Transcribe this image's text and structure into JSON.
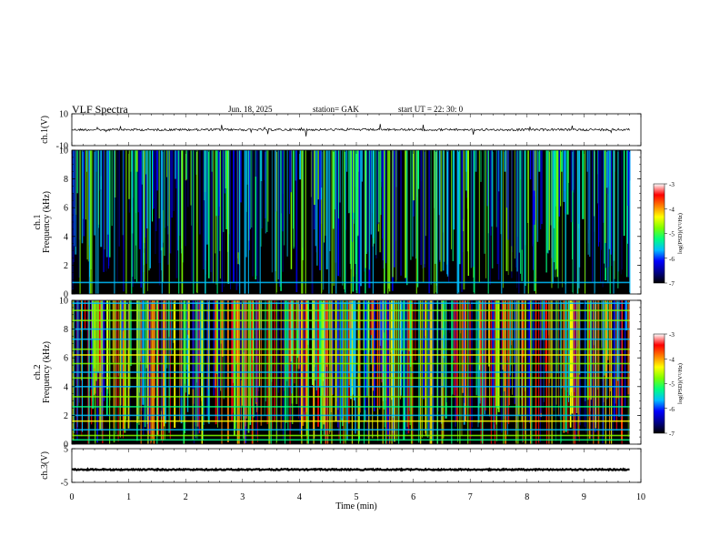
{
  "header": {
    "title": "VLF  Spectra",
    "date": "Jun. 18, 2025",
    "station": "station= GAK",
    "start_ut": "start  UT  =   22: 30: 0"
  },
  "chart_data": [
    {
      "id": "ch1-waveform",
      "type": "line",
      "ylabel": "ch.1(V)",
      "ylim": [
        -10,
        10
      ],
      "yticks": [
        "10",
        "-10"
      ],
      "xlim": [
        0,
        10
      ],
      "baseline": 0,
      "data_end_min": 9.8,
      "color": "#000000"
    },
    {
      "id": "ch1-spectrogram",
      "type": "heatmap",
      "ylabel": "ch.1\nFrequency  (kHz)",
      "ylim": [
        0,
        10
      ],
      "yticks": [
        "0",
        "2",
        "4",
        "6",
        "8",
        "10"
      ],
      "xlim": [
        0,
        10
      ],
      "data_end_min": 9.8,
      "colorbar": {
        "label": "log(PSD)(V²/Hz)",
        "ticks": [
          "-3",
          "-4",
          "-5",
          "-6",
          "-7"
        ],
        "range": [
          -7,
          -3
        ]
      },
      "horizontal_lines_khz": [
        0.8
      ]
    },
    {
      "id": "ch2-spectrogram",
      "type": "heatmap",
      "ylabel": "ch.2\nFrequency  (kHz)",
      "ylim": [
        0,
        10
      ],
      "yticks": [
        "0",
        "2",
        "4",
        "6",
        "8",
        "10"
      ],
      "xlim": [
        0,
        10
      ],
      "data_end_min": 9.8,
      "colorbar": {
        "label": "log(PSD)(V²/Hz)",
        "ticks": [
          "-3",
          "-4",
          "-5",
          "-6",
          "-7"
        ],
        "range": [
          -7,
          -3
        ]
      },
      "horizontal_lines_khz": [
        0.3,
        0.6,
        1.0,
        1.6,
        2.0,
        2.6,
        3.3,
        4.0,
        4.6,
        5.0,
        5.6,
        6.2,
        6.6,
        7.3,
        8.0,
        8.6,
        9.3,
        9.8
      ]
    },
    {
      "id": "ch3-waveform",
      "type": "line",
      "ylabel": "ch.3(V)",
      "ylim": [
        -5,
        5
      ],
      "yticks": [
        "5",
        "-5"
      ],
      "xlim": [
        0,
        10
      ],
      "baseline": -1.2,
      "data_end_min": 9.8,
      "color": "#000000"
    }
  ],
  "xaxis": {
    "label": "Time  (min)",
    "ticks": [
      "0",
      "1",
      "2",
      "3",
      "4",
      "5",
      "6",
      "7",
      "8",
      "9",
      "10"
    ]
  },
  "colormap": [
    "#000000",
    "#00008b",
    "#0000ff",
    "#00bfff",
    "#00ff7f",
    "#7fff00",
    "#ffff00",
    "#ff7f00",
    "#ff0000",
    "#ffffff"
  ]
}
